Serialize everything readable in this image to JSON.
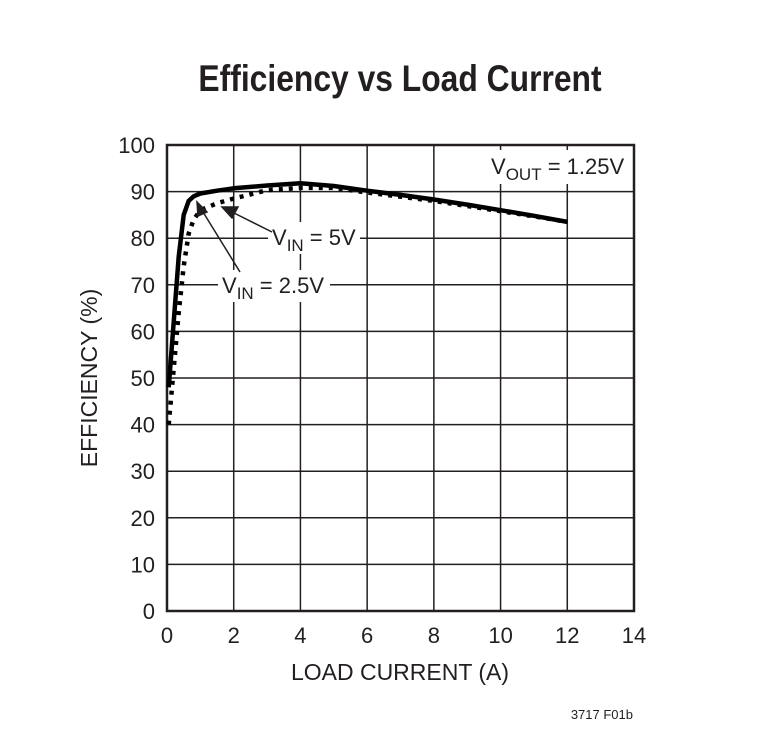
{
  "chart_data": {
    "type": "line",
    "title": "Efficiency vs Load Current",
    "xlabel": "LOAD CURRENT (A)",
    "ylabel": "EFFICIENCY (%)",
    "xlim": [
      0,
      14
    ],
    "ylim": [
      0,
      100
    ],
    "xticks": [
      "0",
      "2",
      "4",
      "6",
      "8",
      "10",
      "12",
      "14"
    ],
    "yticks": [
      "0",
      "10",
      "20",
      "30",
      "40",
      "50",
      "60",
      "70",
      "80",
      "90",
      "100"
    ],
    "grid": true,
    "annotations": [
      "VOUT = 1.25V",
      "VIN = 5V",
      "VIN = 2.5V"
    ],
    "footnote": "3717 F01b",
    "series": [
      {
        "name": "VIN = 2.5V",
        "style": "solid",
        "x": [
          0.05,
          0.2,
          0.35,
          0.5,
          0.65,
          0.8,
          1.0,
          1.5,
          2,
          3,
          4,
          5,
          6,
          7,
          8,
          9,
          10,
          11,
          12
        ],
        "y": [
          48,
          62,
          76,
          85,
          88,
          89,
          89.6,
          90.2,
          90.7,
          91.3,
          91.8,
          91.2,
          90.2,
          89.3,
          88.3,
          87.2,
          86.0,
          84.8,
          83.5
        ]
      },
      {
        "name": "VIN = 5V",
        "style": "dotted",
        "x": [
          0.05,
          0.2,
          0.35,
          0.5,
          0.65,
          0.8,
          1.0,
          1.5,
          2,
          3,
          4,
          5,
          6,
          7,
          8,
          9,
          10,
          11,
          12
        ],
        "y": [
          40,
          52,
          64,
          74,
          81,
          84,
          86,
          87.5,
          88.5,
          90.3,
          90.8,
          90.8,
          89.8,
          88.9,
          88.0,
          86.9,
          85.8,
          84.7,
          83.5
        ]
      }
    ]
  },
  "labels": {
    "title": "Efficiency vs Load Current",
    "xlabel": "LOAD CURRENT (A)",
    "ylabel": "EFFICIENCY (%)",
    "vout_prefix": "V",
    "vout_sub": "OUT",
    "vout_suffix": " = 1.25V",
    "vin5_prefix": "V",
    "vin5_sub": "IN",
    "vin5_suffix": " = 5V",
    "vin25_prefix": "V",
    "vin25_sub": "IN",
    "vin25_suffix": " = 2.5V",
    "footnote": "3717 F01b"
  }
}
